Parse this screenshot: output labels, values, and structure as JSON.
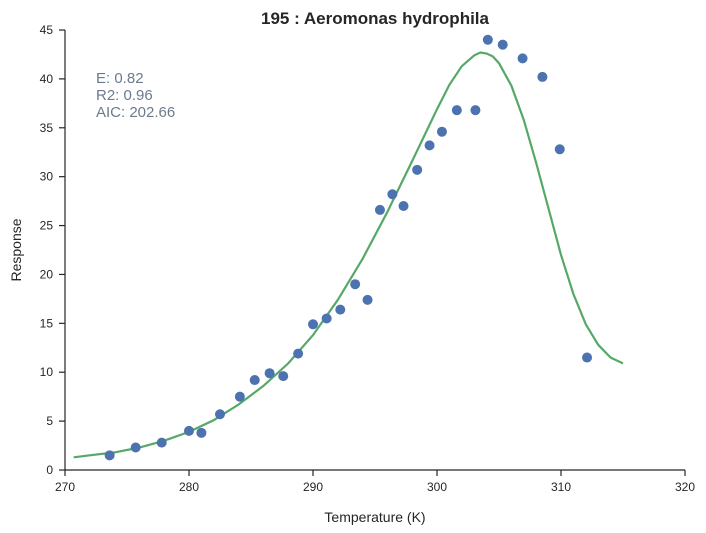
{
  "chart_data": {
    "type": "scatter",
    "title": "195 : Aeromonas hydrophila",
    "xlabel": "Temperature (K)",
    "ylabel": "Response",
    "xlim": [
      270,
      320
    ],
    "ylim": [
      0,
      45
    ],
    "xticks": [
      270,
      280,
      290,
      300,
      310,
      320
    ],
    "yticks": [
      0,
      5,
      10,
      15,
      20,
      25,
      30,
      35,
      40,
      45
    ],
    "grid": false,
    "annotations": [
      "E:  0.82",
      "R2:  0.96",
      "AIC: 202.66"
    ],
    "colors": {
      "points": "#4c72b0",
      "fit": "#55a868"
    },
    "series": [
      {
        "kind": "points",
        "x": [
          273.6,
          275.7,
          277.8,
          280.0,
          281.0,
          282.5,
          284.1,
          285.3,
          286.5,
          287.6,
          288.8,
          290.0,
          291.1,
          292.2,
          293.4,
          294.4,
          295.4,
          296.4,
          297.3,
          298.4,
          299.4,
          300.4,
          301.6,
          303.1,
          304.1,
          305.3,
          306.9,
          308.5,
          309.9,
          312.1
        ],
        "y": [
          1.5,
          2.3,
          2.8,
          4.0,
          3.8,
          5.7,
          7.5,
          9.2,
          9.9,
          9.6,
          11.9,
          14.9,
          15.5,
          16.4,
          19.0,
          17.4,
          26.6,
          28.2,
          27.0,
          30.7,
          33.2,
          34.6,
          36.8,
          36.8,
          44.0,
          43.5,
          42.1,
          40.2,
          32.8,
          11.5
        ]
      },
      {
        "kind": "fit",
        "x": [
          270.7,
          272.0,
          274.0,
          276.0,
          278.0,
          280.0,
          282.0,
          284.0,
          286.0,
          288.0,
          290.0,
          292.0,
          294.0,
          296.0,
          298.0,
          300.0,
          301.0,
          302.0,
          303.0,
          303.5,
          304.0,
          304.5,
          305.0,
          306.0,
          307.0,
          308.0,
          309.0,
          310.0,
          311.0,
          312.0,
          313.0,
          314.0,
          315.0
        ],
        "y": [
          1.3,
          1.5,
          1.8,
          2.3,
          3.0,
          3.9,
          5.1,
          6.7,
          8.6,
          10.9,
          13.8,
          17.4,
          21.6,
          26.4,
          31.6,
          36.9,
          39.4,
          41.3,
          42.4,
          42.7,
          42.6,
          42.3,
          41.6,
          39.3,
          35.8,
          31.4,
          26.7,
          22.0,
          18.0,
          14.9,
          12.8,
          11.5,
          10.9
        ]
      }
    ]
  }
}
